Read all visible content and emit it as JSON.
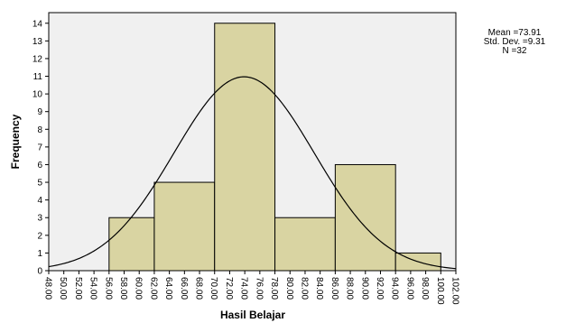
{
  "chart_data": {
    "type": "bar",
    "title": "",
    "xlabel": "Hasil Belajar",
    "ylabel": "Frequency",
    "x_ticks": [
      "48.00",
      "50.00",
      "52.00",
      "54.00",
      "56.00",
      "58.00",
      "60.00",
      "62.00",
      "64.00",
      "66.00",
      "68.00",
      "70.00",
      "72.00",
      "74.00",
      "76.00",
      "78.00",
      "80.00",
      "82.00",
      "84.00",
      "86.00",
      "88.00",
      "90.00",
      "92.00",
      "94.00",
      "96.00",
      "98.00",
      "100.00",
      "102.00"
    ],
    "y_ticks": [
      "0",
      "1",
      "2",
      "3",
      "4",
      "5",
      "6",
      "7",
      "8",
      "9",
      "10",
      "11",
      "12",
      "13",
      "14"
    ],
    "xlim": [
      48,
      102
    ],
    "ylim": [
      0,
      14.6
    ],
    "bins": [
      {
        "x0": 56,
        "x1": 62,
        "value": 3
      },
      {
        "x0": 62,
        "x1": 70,
        "value": 5
      },
      {
        "x0": 70,
        "x1": 78,
        "value": 14
      },
      {
        "x0": 78,
        "x1": 86,
        "value": 3
      },
      {
        "x0": 86,
        "x1": 94,
        "value": 6
      },
      {
        "x0": 94,
        "x1": 100,
        "value": 1
      }
    ],
    "normal_curve": {
      "mean": 73.91,
      "std": 9.31,
      "n": 32,
      "bin_width": 8
    },
    "bar_color": "#d9d4a2",
    "bar_edge_color": "#000000",
    "plot_background": "#f0f0f0",
    "grid": false,
    "stats": {
      "mean": "Mean =73.91",
      "std_dev": "Std. Dev. =9.31",
      "n": "N =32"
    }
  }
}
